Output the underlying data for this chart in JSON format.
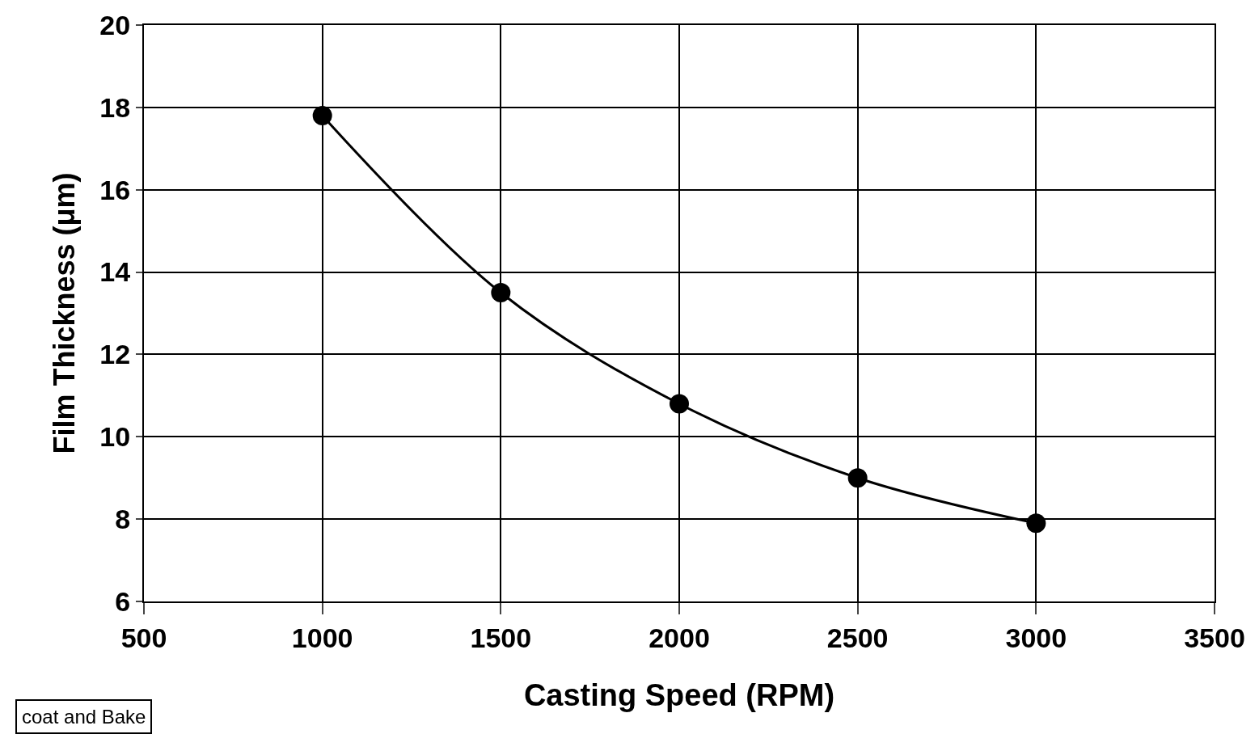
{
  "chart_data": {
    "type": "line",
    "xlabel": "Casting Speed (RPM)",
    "ylabel": "Film Thickness (μm)",
    "x": [
      1000,
      1500,
      2000,
      2500,
      3000
    ],
    "series": [
      {
        "color": "#000000",
        "values": [
          17.8,
          13.5,
          10.8,
          9.0,
          7.9
        ]
      }
    ],
    "xlim": [
      500,
      3500
    ],
    "xticks": [
      500,
      1000,
      1500,
      2000,
      2500,
      3000,
      3500
    ],
    "ylim": [
      6,
      20
    ],
    "yticks": [
      6,
      8,
      10,
      12,
      14,
      16,
      18,
      20
    ],
    "grid": true,
    "marker": "circle",
    "line_style": "solid",
    "annotations": [
      "coat and Bake"
    ]
  }
}
